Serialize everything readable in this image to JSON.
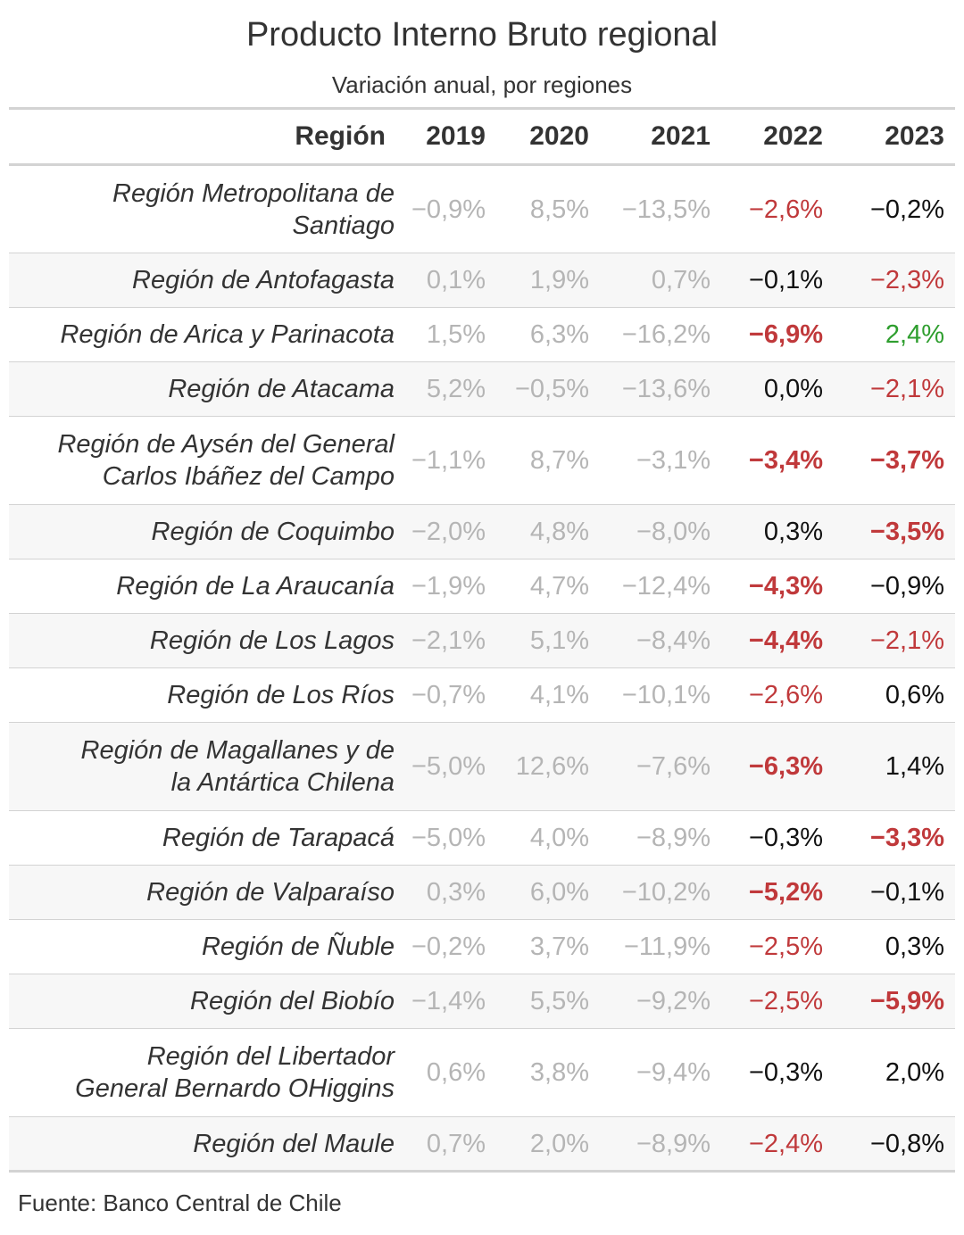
{
  "title": "Producto Interno Bruto regional",
  "subtitle": "Variación anual, por regiones",
  "source": "Fuente: Banco Central de Chile",
  "colors": {
    "muted": "#b5b5b5",
    "neutral": "#111111",
    "negative": "#c0393b",
    "positive": "#2e9e2e",
    "shade": "#f7f7f7",
    "rule": "#d3d3d3"
  },
  "chart_data": {
    "type": "table",
    "title": "Producto Interno Bruto regional",
    "subtitle": "Variación anual, por regiones",
    "columns": [
      "Región",
      "2019",
      "2020",
      "2021",
      "2022",
      "2023"
    ],
    "rows": [
      {
        "region_lines": [
          "Región Metropolitana de",
          "Santiago"
        ],
        "values": [
          "−0,9%",
          "8,5%",
          "−13,5%",
          "−2,6%",
          "−0,2%"
        ],
        "styles": [
          "muted",
          "muted",
          "muted",
          "neg",
          "neutral"
        ]
      },
      {
        "region_lines": [
          "Región de Antofagasta"
        ],
        "values": [
          "0,1%",
          "1,9%",
          "0,7%",
          "−0,1%",
          "−2,3%"
        ],
        "styles": [
          "muted",
          "muted",
          "muted",
          "neutral",
          "neg"
        ]
      },
      {
        "region_lines": [
          "Región de Arica y Parinacota"
        ],
        "values": [
          "1,5%",
          "6,3%",
          "−16,2%",
          "−6,9%",
          "2,4%"
        ],
        "styles": [
          "muted",
          "muted",
          "muted",
          "strong",
          "pos"
        ]
      },
      {
        "region_lines": [
          "Región de Atacama"
        ],
        "values": [
          "5,2%",
          "−0,5%",
          "−13,6%",
          "0,0%",
          "−2,1%"
        ],
        "styles": [
          "muted",
          "muted",
          "muted",
          "neutral",
          "neg"
        ]
      },
      {
        "region_lines": [
          "Región de Aysén del General",
          "Carlos Ibáñez del Campo"
        ],
        "values": [
          "−1,1%",
          "8,7%",
          "−3,1%",
          "−3,4%",
          "−3,7%"
        ],
        "styles": [
          "muted",
          "muted",
          "muted",
          "strong",
          "strong"
        ]
      },
      {
        "region_lines": [
          "Región de Coquimbo"
        ],
        "values": [
          "−2,0%",
          "4,8%",
          "−8,0%",
          "0,3%",
          "−3,5%"
        ],
        "styles": [
          "muted",
          "muted",
          "muted",
          "neutral",
          "strong"
        ]
      },
      {
        "region_lines": [
          "Región de La Araucanía"
        ],
        "values": [
          "−1,9%",
          "4,7%",
          "−12,4%",
          "−4,3%",
          "−0,9%"
        ],
        "styles": [
          "muted",
          "muted",
          "muted",
          "strong",
          "neutral"
        ]
      },
      {
        "region_lines": [
          "Región de Los Lagos"
        ],
        "values": [
          "−2,1%",
          "5,1%",
          "−8,4%",
          "−4,4%",
          "−2,1%"
        ],
        "styles": [
          "muted",
          "muted",
          "muted",
          "strong",
          "neg"
        ]
      },
      {
        "region_lines": [
          "Región de Los Ríos"
        ],
        "values": [
          "−0,7%",
          "4,1%",
          "−10,1%",
          "−2,6%",
          "0,6%"
        ],
        "styles": [
          "muted",
          "muted",
          "muted",
          "neg",
          "neutral"
        ]
      },
      {
        "region_lines": [
          "Región de Magallanes y de",
          "la Antártica Chilena"
        ],
        "values": [
          "−5,0%",
          "12,6%",
          "−7,6%",
          "−6,3%",
          "1,4%"
        ],
        "styles": [
          "muted",
          "muted",
          "muted",
          "strong",
          "neutral"
        ]
      },
      {
        "region_lines": [
          "Región de Tarapacá"
        ],
        "values": [
          "−5,0%",
          "4,0%",
          "−8,9%",
          "−0,3%",
          "−3,3%"
        ],
        "styles": [
          "muted",
          "muted",
          "muted",
          "neutral",
          "strong"
        ]
      },
      {
        "region_lines": [
          "Región de Valparaíso"
        ],
        "values": [
          "0,3%",
          "6,0%",
          "−10,2%",
          "−5,2%",
          "−0,1%"
        ],
        "styles": [
          "muted",
          "muted",
          "muted",
          "strong",
          "neutral"
        ]
      },
      {
        "region_lines": [
          "Región de Ñuble"
        ],
        "values": [
          "−0,2%",
          "3,7%",
          "−11,9%",
          "−2,5%",
          "0,3%"
        ],
        "styles": [
          "muted",
          "muted",
          "muted",
          "neg",
          "neutral"
        ]
      },
      {
        "region_lines": [
          "Región del Biobío"
        ],
        "values": [
          "−1,4%",
          "5,5%",
          "−9,2%",
          "−2,5%",
          "−5,9%"
        ],
        "styles": [
          "muted",
          "muted",
          "muted",
          "neg",
          "strong"
        ]
      },
      {
        "region_lines": [
          "Región del Libertador",
          "General Bernardo OHiggins"
        ],
        "values": [
          "0,6%",
          "3,8%",
          "−9,4%",
          "−0,3%",
          "2,0%"
        ],
        "styles": [
          "muted",
          "muted",
          "muted",
          "neutral",
          "neutral"
        ]
      },
      {
        "region_lines": [
          "Región del Maule"
        ],
        "values": [
          "0,7%",
          "2,0%",
          "−8,9%",
          "−2,4%",
          "−0,8%"
        ],
        "styles": [
          "muted",
          "muted",
          "muted",
          "neg",
          "neutral"
        ]
      }
    ]
  }
}
